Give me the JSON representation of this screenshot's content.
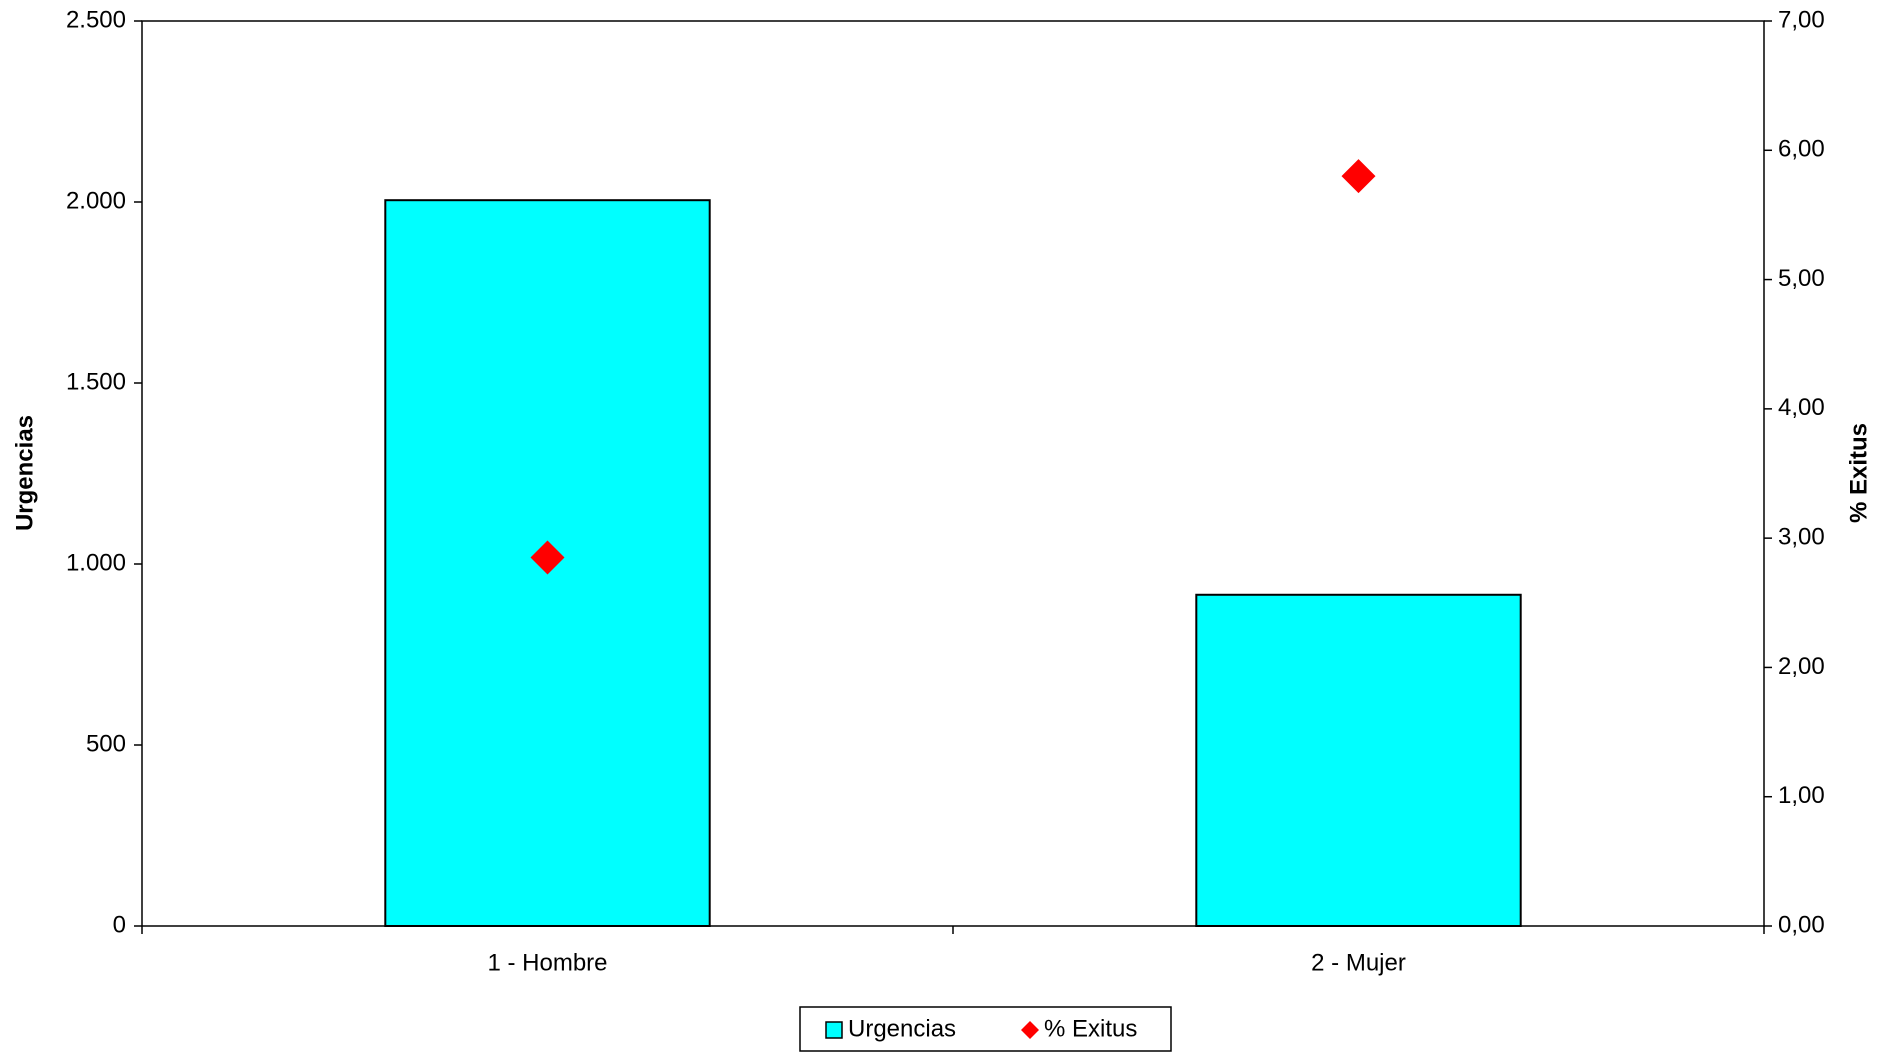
{
  "chart_data": {
    "type": "bar",
    "categories": [
      "1 - Hombre",
      "2 - Mujer"
    ],
    "series": [
      {
        "name": "Urgencias",
        "color": "#00ffff",
        "values": [
          2005,
          915
        ]
      },
      {
        "name": "% Exitus",
        "color": "#ff0000",
        "axis": "y2",
        "marker": "diamond",
        "values": [
          2.85,
          5.8
        ]
      }
    ],
    "y_label": "Urgencias",
    "y2_label": "% Exitus",
    "ylim": [
      0,
      2500
    ],
    "yticks": [
      0,
      500,
      {
        "value": 1000,
        "label": "1.000"
      },
      {
        "value": 1500,
        "label": "1.500"
      },
      {
        "value": 2000,
        "label": "2.000"
      },
      {
        "value": 2500,
        "label": "2.500"
      }
    ],
    "y2lim": [
      0,
      7
    ],
    "y2ticks": [
      {
        "value": 0,
        "label": "0,00"
      },
      {
        "value": 1,
        "label": "1,00"
      },
      {
        "value": 2,
        "label": "2,00"
      },
      {
        "value": 3,
        "label": "3,00"
      },
      {
        "value": 4,
        "label": "4,00"
      },
      {
        "value": 5,
        "label": "5,00"
      },
      {
        "value": 6,
        "label": "6,00"
      },
      {
        "value": 7,
        "label": "7,00"
      }
    ],
    "legend": "bottom"
  }
}
